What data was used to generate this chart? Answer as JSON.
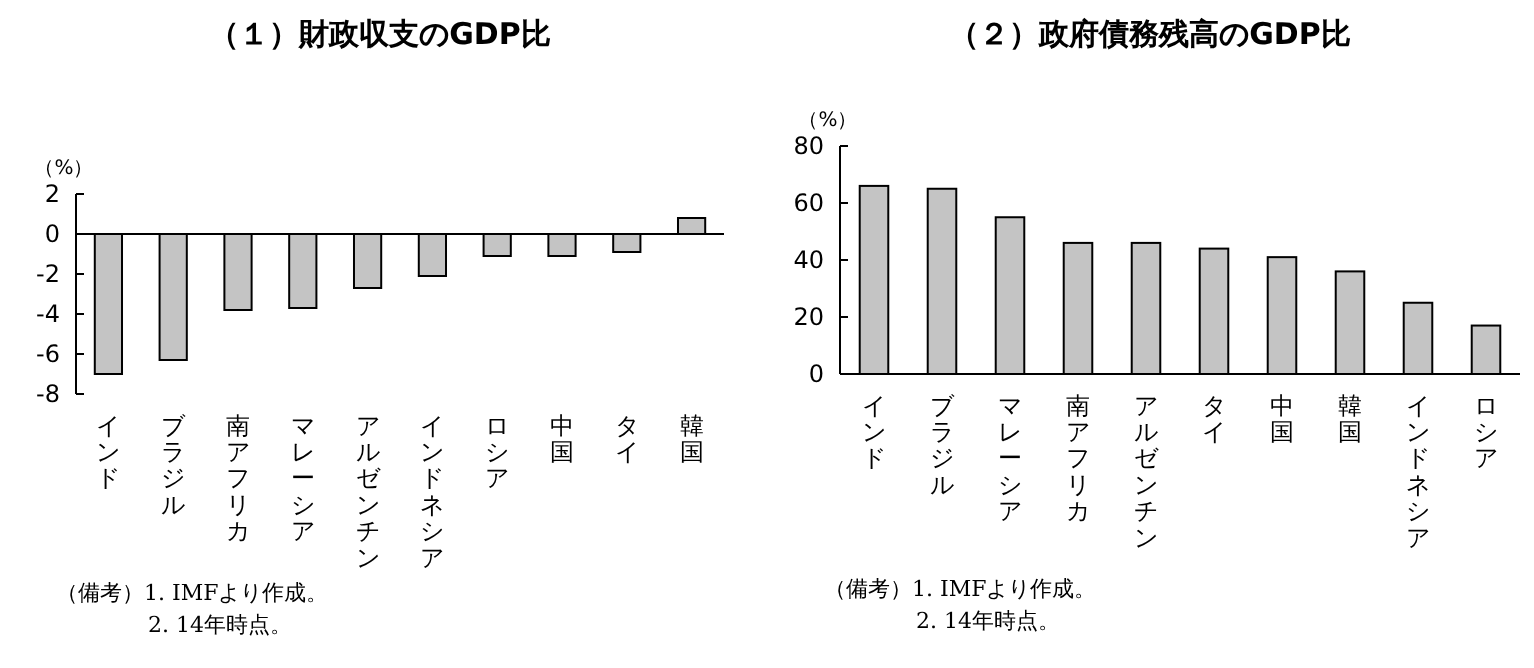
{
  "chart_data": [
    {
      "type": "bar",
      "title": "（１）財政収支のGDP比",
      "ylabel": "（%）",
      "categories": [
        "インド",
        "ブラジル",
        "南アフリカ",
        "マレーシア",
        "アルゼンチン",
        "インドネシア",
        "ロシア",
        "中国",
        "タイ",
        "韓国"
      ],
      "values": [
        -7.0,
        -6.3,
        -3.8,
        -3.7,
        -2.7,
        -2.1,
        -1.1,
        -1.1,
        -0.9,
        0.8
      ],
      "color": "#c4c4c4",
      "ylim": [
        -8,
        2
      ],
      "yticks": [
        -8,
        -6,
        -4,
        -2,
        0,
        2
      ],
      "annotations": [
        "（備考）1. IMFより作成。",
        "2. 14年時点。"
      ]
    },
    {
      "type": "bar",
      "title": "（２）政府債務残高のGDP比",
      "ylabel": "（%）",
      "categories": [
        "インド",
        "ブラジル",
        "マレーシア",
        "南アフリカ",
        "アルゼンチン",
        "タイ",
        "中国",
        "韓国",
        "インドネシア",
        "ロシア"
      ],
      "values": [
        66,
        65,
        55,
        46,
        46,
        44,
        41,
        36,
        25,
        17
      ],
      "color": "#c4c4c4",
      "ylim": [
        0,
        80
      ],
      "yticks": [
        0,
        20,
        40,
        60,
        80
      ],
      "annotations": [
        "（備考）1. IMFより作成。",
        "2. 14年時点。"
      ]
    }
  ]
}
